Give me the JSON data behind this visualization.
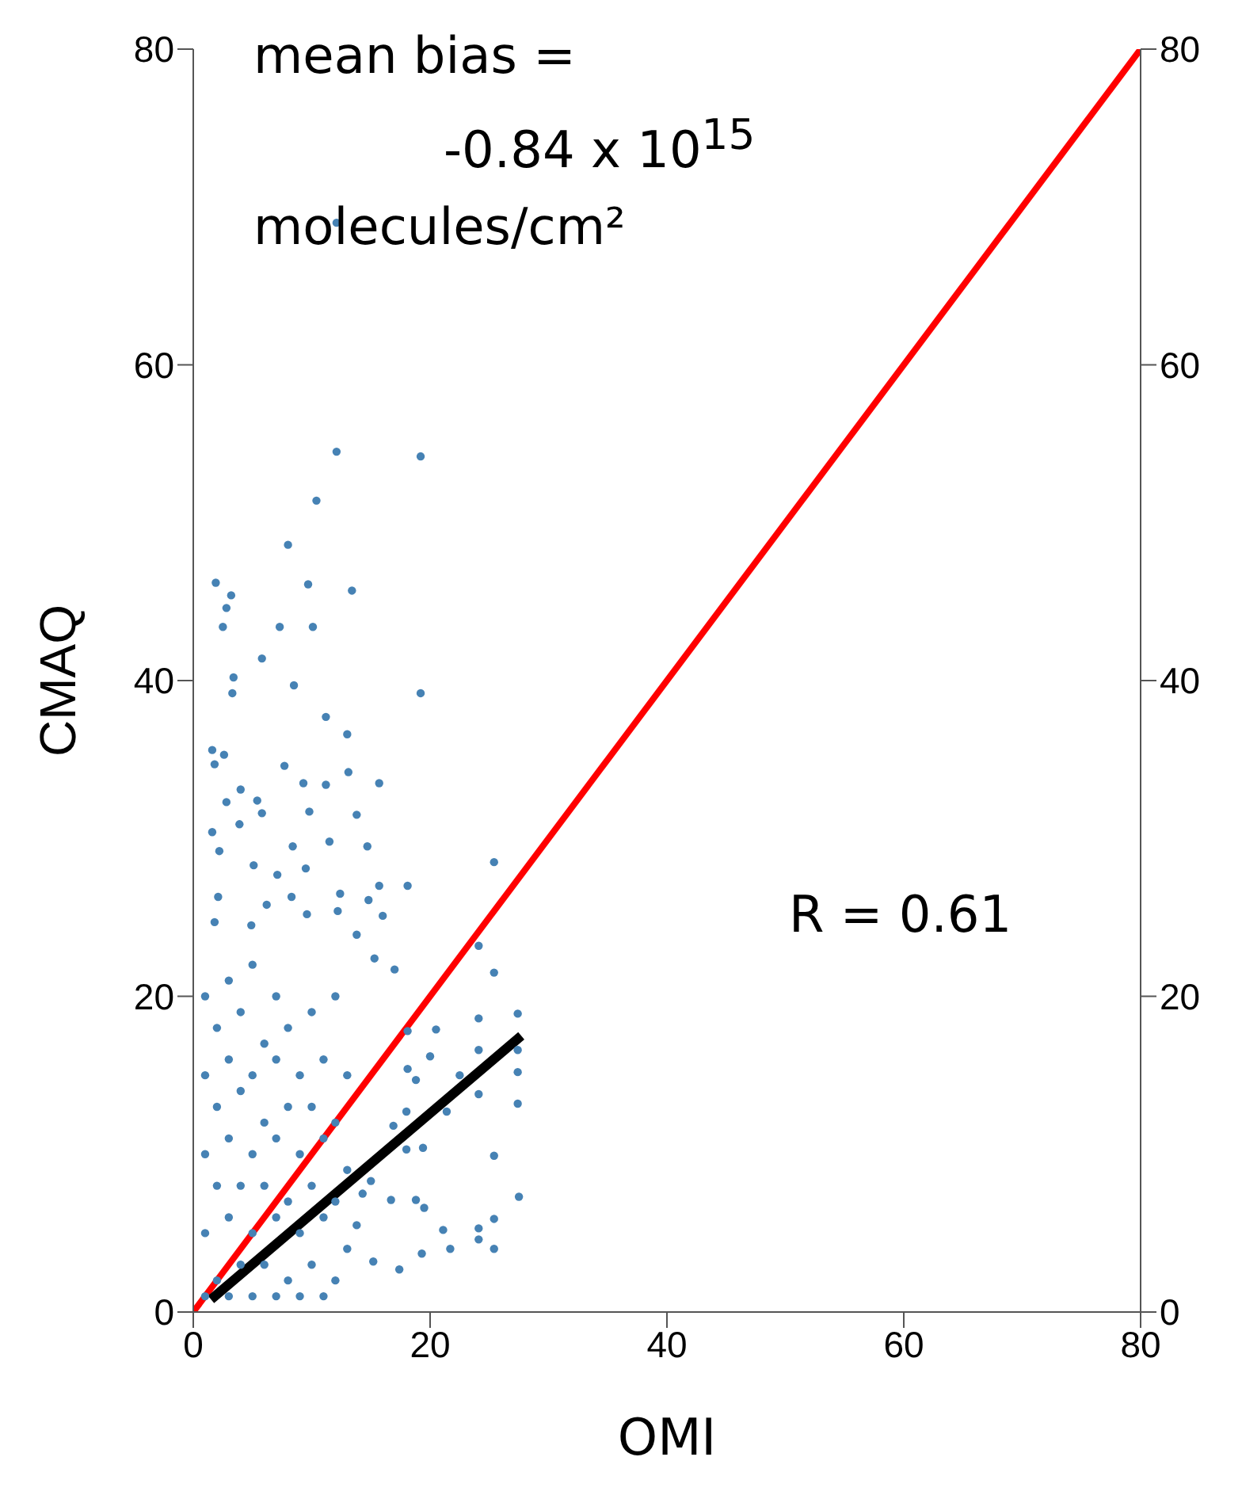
{
  "chart_data": {
    "type": "scatter",
    "xlabel": "OMI",
    "ylabel": "CMAQ",
    "xlim": [
      0,
      80
    ],
    "xticks": [
      0,
      20,
      40,
      60,
      80
    ],
    "ylim": [
      0,
      80
    ],
    "yticks": [
      0,
      20,
      40,
      60,
      80
    ],
    "y2lim": [
      0,
      80
    ],
    "y2ticks": [
      0,
      20,
      40,
      60,
      80
    ],
    "grid": false,
    "legend": false,
    "annotations": [
      "mean bias =",
      "-0.84 x 10$^{15}$",
      "molecules/cm²",
      "R = 0.61"
    ],
    "series": [
      {
        "marker": "circle",
        "color": "#4682b4",
        "x": [
          12.1,
          12.1,
          19.2,
          10.4,
          8.0,
          1.9,
          3.2,
          2.8,
          2.5,
          9.7,
          13.4,
          7.3,
          10.1,
          5.8,
          3.4,
          3.3,
          8.5,
          19.2,
          11.2,
          13.0,
          1.6,
          2.6,
          1.8,
          7.7,
          9.3,
          11.2,
          13.1,
          15.7,
          4.0,
          2.8,
          5.4,
          5.8,
          9.8,
          13.8,
          3.9,
          1.6,
          2.2,
          8.4,
          11.5,
          14.7,
          5.1,
          25.4,
          7.1,
          9.5,
          2.1,
          8.3,
          12.4,
          15.7,
          18.1,
          14.8,
          16.0,
          6.2,
          1.8,
          4.9,
          9.6,
          12.2,
          13.8,
          24.1,
          25.4,
          15.3,
          17.0,
          18.1,
          20.5,
          24.1,
          27.4,
          27.4,
          24.1,
          20.0,
          18.1,
          18.8,
          22.5,
          24.1,
          27.4,
          27.4,
          21.4,
          18.0,
          16.9,
          19.4,
          25.4,
          18.0,
          15.0,
          16.7,
          18.8,
          19.5,
          27.5,
          21.1,
          24.1,
          25.4,
          21.7,
          24.1,
          25.4,
          17.4,
          19.3,
          15.2,
          13.8,
          14.3,
          1,
          1,
          1,
          1,
          1,
          2,
          2,
          2,
          2,
          3,
          3,
          3,
          3,
          3,
          4,
          4,
          4,
          4,
          5,
          5,
          5,
          5,
          5,
          6,
          6,
          6,
          6,
          7,
          7,
          7,
          7,
          7,
          8,
          8,
          8,
          8,
          9,
          9,
          9,
          9,
          10,
          10,
          10,
          10,
          11,
          11,
          11,
          11,
          12,
          12,
          12,
          12,
          13,
          13,
          13
        ],
        "values": [
          69.0,
          54.5,
          54.2,
          51.4,
          48.6,
          46.2,
          45.4,
          44.6,
          43.4,
          46.1,
          45.7,
          43.4,
          43.4,
          41.4,
          40.2,
          39.2,
          39.7,
          39.2,
          37.7,
          36.6,
          35.6,
          35.3,
          34.7,
          34.6,
          33.5,
          33.4,
          34.2,
          33.5,
          33.1,
          32.3,
          32.4,
          31.6,
          31.7,
          31.5,
          30.9,
          30.4,
          29.2,
          29.5,
          29.8,
          29.5,
          28.3,
          28.5,
          27.7,
          28.1,
          26.3,
          26.3,
          26.5,
          27.0,
          27.0,
          26.1,
          25.1,
          25.8,
          24.7,
          24.5,
          25.2,
          25.4,
          23.9,
          23.2,
          21.5,
          22.4,
          21.7,
          17.8,
          17.9,
          18.6,
          18.9,
          16.6,
          16.6,
          16.2,
          15.4,
          14.7,
          15.0,
          13.8,
          15.2,
          13.2,
          12.7,
          12.7,
          11.8,
          10.4,
          9.9,
          10.3,
          8.3,
          7.1,
          7.1,
          6.6,
          7.3,
          5.2,
          5.3,
          5.9,
          4.0,
          4.6,
          4.0,
          2.7,
          3.7,
          3.2,
          5.5,
          7.5,
          1,
          5,
          10,
          15,
          20,
          2,
          8,
          13,
          18,
          1,
          6,
          11,
          16,
          21,
          3,
          8,
          14,
          19,
          1,
          5,
          10,
          15,
          22,
          3,
          8,
          12,
          17,
          1,
          6,
          11,
          16,
          20,
          2,
          7,
          13,
          18,
          1,
          5,
          10,
          15,
          3,
          8,
          13,
          19,
          1,
          6,
          11,
          16,
          2,
          7,
          12,
          20,
          4,
          9,
          15
        ]
      },
      {
        "type": "line",
        "color": "#ff0000",
        "x": [
          0,
          80
        ],
        "values": [
          0,
          80
        ]
      },
      {
        "type": "line",
        "color": "#000000",
        "x": [
          1.5,
          27.7
        ],
        "values": [
          0.8,
          17.5
        ]
      }
    ]
  }
}
